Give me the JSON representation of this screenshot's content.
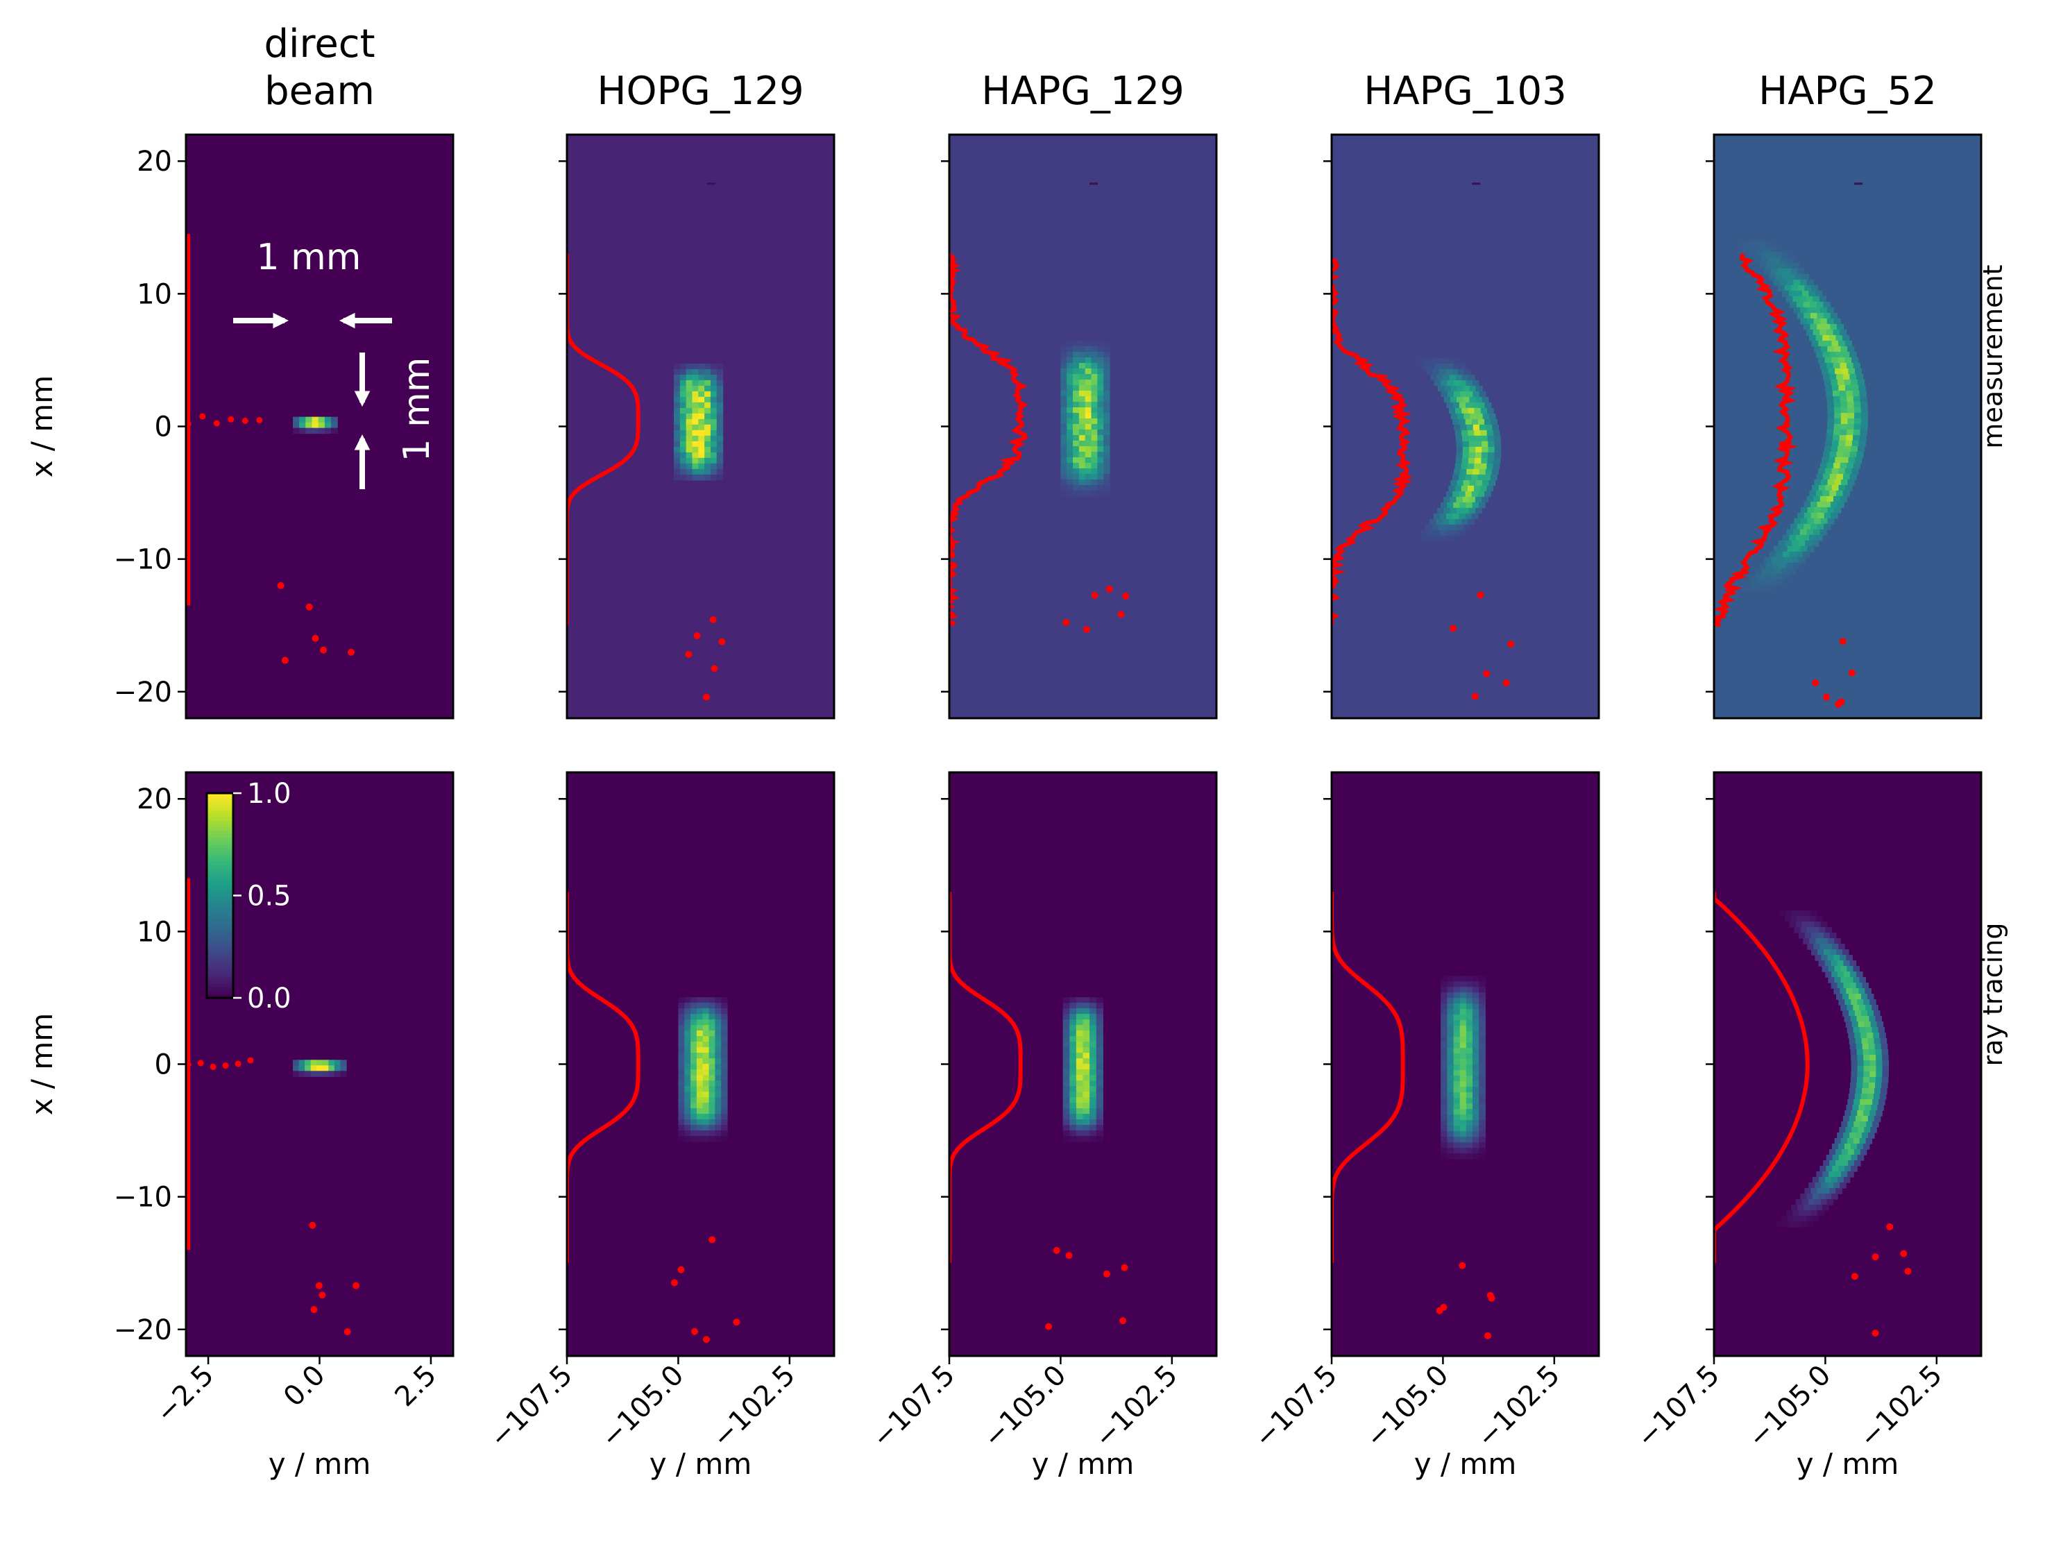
{
  "colors": {
    "background": "#440154",
    "marker": "#ff0000",
    "annotation": "#ffffff"
  },
  "row_labels": [
    "measurement",
    "ray tracing"
  ],
  "annotations": {
    "width": "1 mm",
    "height": "1 mm"
  },
  "colorbar": {
    "colormap": "viridis",
    "ticks": [
      "1.0",
      "0.5",
      "0.0"
    ]
  },
  "chart_data": [
    {
      "type": "heatmap",
      "row": "measurement",
      "title": "direct beam",
      "xlabel": "y / mm",
      "ylabel": "x / mm",
      "xlim": [
        -3,
        3
      ],
      "ylim": [
        -22,
        22
      ],
      "xticks": [
        "−2.5",
        "0.0",
        "2.5"
      ],
      "yticks": [
        "20",
        "10",
        "0",
        "−10",
        "−20"
      ],
      "spot": {
        "y_center": -0.1,
        "x_center": 0.4,
        "y_halfwidth": 0.5,
        "x_halfwidth": 0.5,
        "shape": "flat",
        "peak": 1.0
      },
      "background_level": 0.0,
      "profile_x": [
        -13.5,
        14.5
      ],
      "profile_bulge": {
        "x": 0.5,
        "y": -1.4
      }
    },
    {
      "type": "heatmap",
      "row": "measurement",
      "title": "HOPG_129",
      "xlabel": "y / mm",
      "ylabel": "",
      "xlim": [
        -107.5,
        -101.5
      ],
      "ylim": [
        -22,
        22
      ],
      "xticks": [
        "−107.5",
        "−105.0",
        "−102.5"
      ],
      "spot": {
        "y_center": -104.55,
        "x_center": 0.5,
        "y_halfwidth": 0.55,
        "x_halfwidth": 4.0,
        "shape": "flat",
        "peak": 1.0
      },
      "background_level": 0.1,
      "profile_x": [
        -15,
        13
      ],
      "profile_y": [
        -107.5,
        -105.9
      ]
    },
    {
      "type": "heatmap",
      "row": "measurement",
      "title": "HAPG_129",
      "xlabel": "y / mm",
      "ylabel": "",
      "xlim": [
        -107.5,
        -101.5
      ],
      "ylim": [
        -22,
        22
      ],
      "xticks": [
        "−107.5",
        "−105.0",
        "−102.5"
      ],
      "spot": {
        "y_center": -104.45,
        "x_center": 0.8,
        "y_halfwidth": 0.55,
        "x_halfwidth": 5.0,
        "shape": "flat",
        "peak": 0.85
      },
      "background_level": 0.18,
      "profile_x": [
        -15,
        13
      ],
      "profile_y": [
        -107.5,
        -105.9
      ]
    },
    {
      "type": "heatmap",
      "row": "measurement",
      "title": "HAPG_103",
      "xlabel": "y / mm",
      "ylabel": "",
      "xlim": [
        -107.5,
        -101.5
      ],
      "ylim": [
        -22,
        22
      ],
      "xticks": [
        "−107.5",
        "−105.0",
        "−102.5"
      ],
      "spot": {
        "y_center": -104.2,
        "x_center": -1.5,
        "y_halfwidth": 0.5,
        "x_halfwidth": 6.0,
        "shape": "curved",
        "curvature": 0.02,
        "peak": 0.8
      },
      "background_level": 0.2,
      "profile_x": [
        -15,
        13
      ],
      "profile_y": [
        -107.5,
        -105.9
      ]
    },
    {
      "type": "heatmap",
      "row": "measurement",
      "title": "HAPG_52",
      "xlabel": "y / mm",
      "ylabel": "",
      "xlim": [
        -107.5,
        -101.5
      ],
      "ylim": [
        -22,
        22
      ],
      "xticks": [
        "−107.5",
        "−105.0",
        "−102.5"
      ],
      "spot": {
        "y_center": -104.5,
        "x_center": 1.0,
        "y_halfwidth": 0.45,
        "x_halfwidth": 11.5,
        "shape": "curved",
        "curvature": 0.012,
        "peak": 0.8
      },
      "background_level": 0.28,
      "profile_x": [
        -15,
        13
      ],
      "profile_y": [
        -107.5,
        -105.9
      ]
    },
    {
      "type": "heatmap",
      "row": "ray tracing",
      "title": "",
      "xlabel": "y / mm",
      "ylabel": "x / mm",
      "xlim": [
        -3,
        3
      ],
      "ylim": [
        -22,
        22
      ],
      "xticks": [
        "−2.5",
        "0.0",
        "2.5"
      ],
      "yticks": [
        "20",
        "10",
        "0",
        "−10",
        "−20"
      ],
      "spot": {
        "y_center": 0.0,
        "x_center": 0.0,
        "y_halfwidth": 0.6,
        "x_halfwidth": 0.5,
        "shape": "flat",
        "peak": 1.0
      },
      "background_level": 0.0,
      "profile_x": [
        -14,
        14
      ],
      "profile_bulge": {
        "x": 0.0,
        "y": -1.6
      }
    },
    {
      "type": "heatmap",
      "row": "ray tracing",
      "title": "",
      "xlabel": "y / mm",
      "ylabel": "",
      "xlim": [
        -107.5,
        -101.5
      ],
      "ylim": [
        -22,
        22
      ],
      "xticks": [
        "−107.5",
        "−105.0",
        "−102.5"
      ],
      "spot": {
        "y_center": -104.45,
        "x_center": 0.0,
        "y_halfwidth": 0.55,
        "x_halfwidth": 4.8,
        "shape": "flat",
        "peak": 0.9
      },
      "background_level": 0.0,
      "profile_x": [
        -15,
        13
      ],
      "profile_y": [
        -107.5,
        -105.9
      ]
    },
    {
      "type": "heatmap",
      "row": "ray tracing",
      "title": "",
      "xlabel": "y / mm",
      "ylabel": "",
      "xlim": [
        -107.5,
        -101.5
      ],
      "ylim": [
        -22,
        22
      ],
      "xticks": [
        "−107.5",
        "−105.0",
        "−102.5"
      ],
      "spot": {
        "y_center": -104.5,
        "x_center": 0.0,
        "y_halfwidth": 0.45,
        "x_halfwidth": 4.8,
        "shape": "flat",
        "peak": 0.9
      },
      "background_level": 0.0,
      "profile_x": [
        -15,
        13
      ],
      "profile_y": [
        -107.5,
        -105.9
      ]
    },
    {
      "type": "heatmap",
      "row": "ray tracing",
      "title": "",
      "xlabel": "y / mm",
      "ylabel": "",
      "xlim": [
        -107.5,
        -101.5
      ],
      "ylim": [
        -22,
        22
      ],
      "xticks": [
        "−107.5",
        "−105.0",
        "−102.5"
      ],
      "spot": {
        "y_center": -104.55,
        "x_center": 0.0,
        "y_halfwidth": 0.5,
        "x_halfwidth": 6.0,
        "shape": "flat",
        "peak": 0.75
      },
      "background_level": 0.0,
      "profile_x": [
        -15,
        13
      ],
      "profile_y": [
        -107.5,
        -105.9
      ]
    },
    {
      "type": "heatmap",
      "row": "ray tracing",
      "title": "",
      "xlabel": "y / mm",
      "ylabel": "",
      "xlim": [
        -107.5,
        -101.5
      ],
      "ylim": [
        -22,
        22
      ],
      "xticks": [
        "−107.5",
        "−105.0",
        "−102.5"
      ],
      "spot": {
        "y_center": -104.0,
        "x_center": 0.0,
        "y_halfwidth": 0.42,
        "x_halfwidth": 10.5,
        "shape": "curved",
        "curvature": 0.012,
        "peak": 0.75
      },
      "background_level": 0.0,
      "profile_x": [
        -15,
        13
      ],
      "profile_y": [
        -107.5,
        -105.4
      ],
      "profile_shape": "arc"
    }
  ]
}
